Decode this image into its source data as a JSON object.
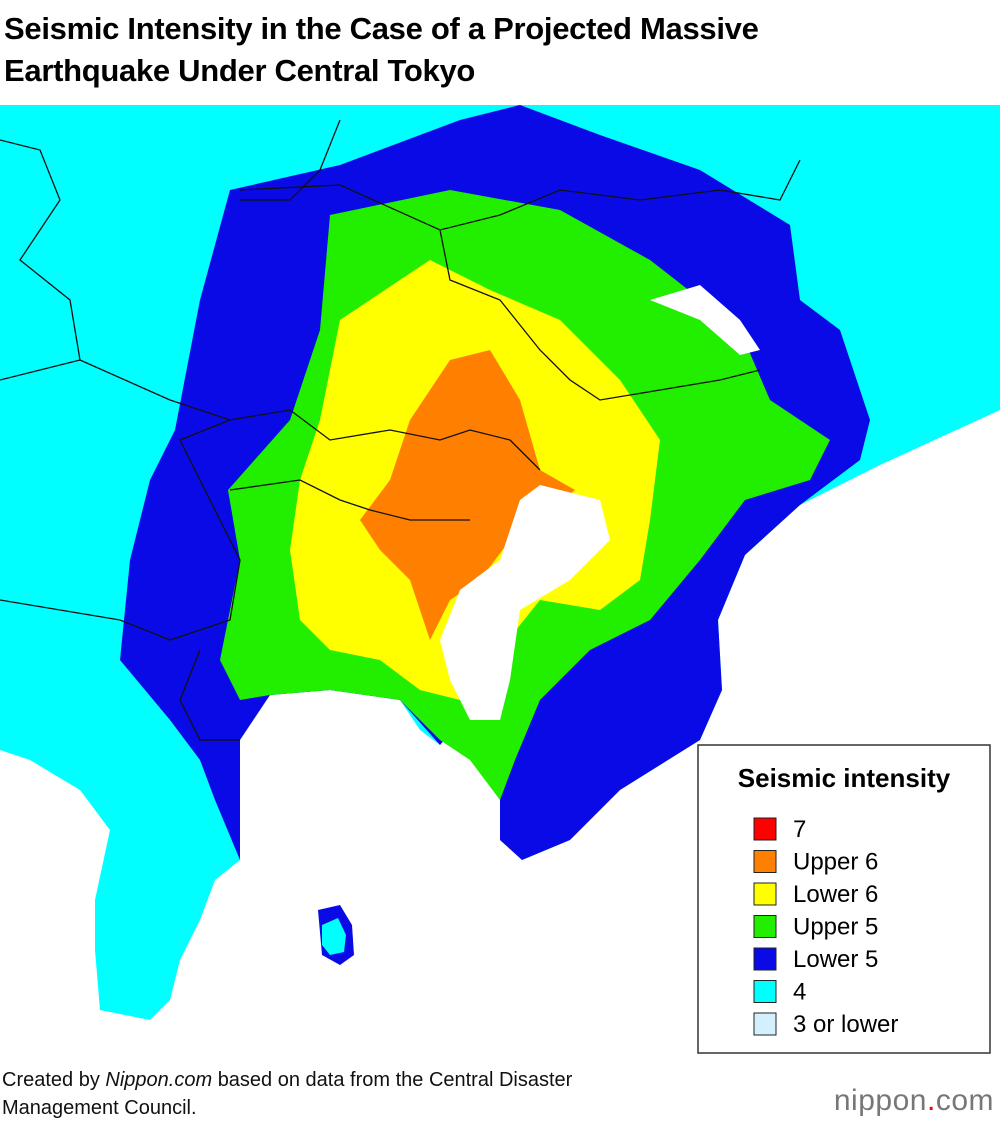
{
  "header": {
    "title_line1": "Seismic Intensity in the Case of a Projected Massive",
    "title_line2": "Earthquake Under Central Tokyo"
  },
  "legend": {
    "title": "Seismic intensity",
    "items": [
      {
        "label": "7",
        "color": "#ff0000"
      },
      {
        "label": "Upper 6",
        "color": "#ff8000"
      },
      {
        "label": "Lower 6",
        "color": "#ffff00"
      },
      {
        "label": "Upper 5",
        "color": "#22ee00"
      },
      {
        "label": "Lower 5",
        "color": "#0a0ae6"
      },
      {
        "label": "4",
        "color": "#00ffff"
      },
      {
        "label": "3 or lower",
        "color": "#d4f0ff"
      }
    ]
  },
  "footer": {
    "source_prefix": "Created by",
    "source_name": "Nippon.com",
    "source_suffix": "based on data from the Central Disaster",
    "source_line2": "Management Council."
  },
  "logo": {
    "name": "nippon",
    "dot": ".",
    "tld": "com"
  }
}
